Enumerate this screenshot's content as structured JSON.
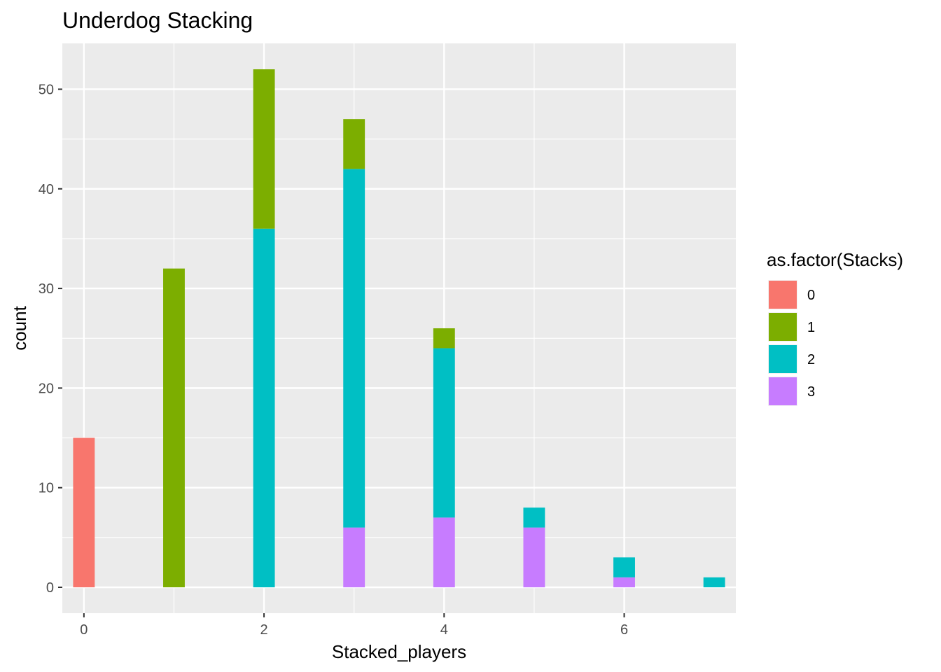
{
  "chart_data": {
    "type": "bar",
    "title": "Underdog Stacking",
    "xlabel": "Stacked_players",
    "ylabel": "count",
    "x": [
      0,
      1,
      2,
      3,
      4,
      5,
      6,
      7
    ],
    "x_ticks": [
      0,
      2,
      4,
      6
    ],
    "y_ticks": [
      0,
      10,
      20,
      30,
      40,
      50
    ],
    "xlim": [
      -0.24,
      7.24
    ],
    "ylim": [
      -2.6,
      54.6
    ],
    "bar_width": 0.24,
    "stacked": true,
    "grid": true,
    "legend": {
      "title": "as.factor(Stacks)",
      "placement": "right"
    },
    "series": [
      {
        "name": "0",
        "color": "#F8766D",
        "values": [
          15,
          0,
          0,
          0,
          0,
          0,
          0,
          0
        ]
      },
      {
        "name": "1",
        "color": "#7CAE00",
        "values": [
          0,
          32,
          16,
          5,
          2,
          0,
          0,
          0
        ]
      },
      {
        "name": "2",
        "color": "#00BFC4",
        "values": [
          0,
          0,
          36,
          36,
          17,
          2,
          2,
          1
        ]
      },
      {
        "name": "3",
        "color": "#C77CFF",
        "values": [
          0,
          0,
          0,
          6,
          7,
          6,
          1,
          0
        ]
      }
    ],
    "stack_order": [
      "3",
      "2",
      "1",
      "0"
    ]
  }
}
